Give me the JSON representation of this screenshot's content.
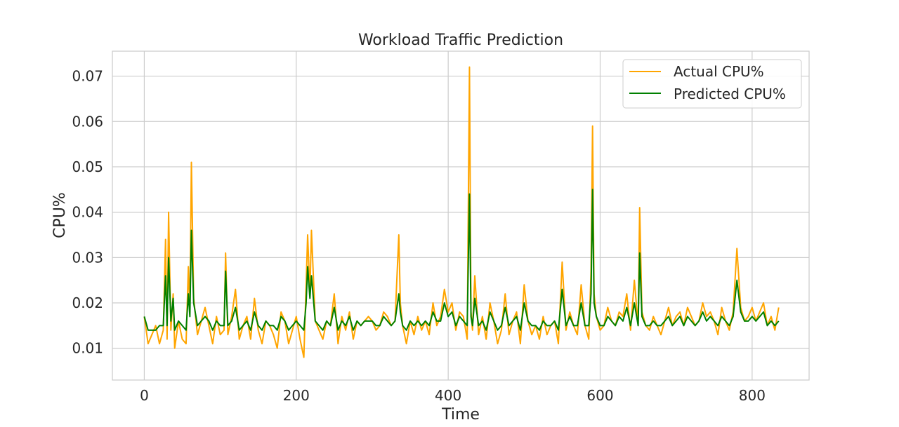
{
  "chart_data": {
    "type": "line",
    "title": "Workload Traffic Prediction",
    "xlabel": "Time",
    "ylabel": "CPU%",
    "xlim": [
      -42,
      875
    ],
    "ylim": [
      0.003,
      0.0755
    ],
    "xticks": [
      0,
      200,
      400,
      600,
      800
    ],
    "xtick_labels": [
      "0",
      "200",
      "400",
      "600",
      "800"
    ],
    "yticks": [
      0.01,
      0.02,
      0.03,
      0.04,
      0.05,
      0.06,
      0.07
    ],
    "ytick_labels": [
      "0.01",
      "0.02",
      "0.03",
      "0.04",
      "0.05",
      "0.06",
      "0.07"
    ],
    "grid": true,
    "legend_position": "top-right",
    "series": [
      {
        "name": "Actual CPU%",
        "color": "#FFA500",
        "x": [
          0,
          5,
          10,
          15,
          20,
          25,
          28,
          30,
          32,
          35,
          38,
          40,
          45,
          50,
          55,
          58,
          60,
          62,
          65,
          70,
          75,
          80,
          85,
          90,
          95,
          100,
          105,
          107,
          110,
          115,
          120,
          125,
          130,
          135,
          140,
          145,
          150,
          155,
          160,
          165,
          170,
          175,
          180,
          185,
          190,
          195,
          200,
          205,
          210,
          213,
          215,
          218,
          220,
          225,
          230,
          235,
          240,
          245,
          250,
          255,
          260,
          265,
          270,
          275,
          280,
          285,
          290,
          295,
          300,
          305,
          310,
          315,
          320,
          325,
          330,
          335,
          337,
          340,
          345,
          350,
          355,
          360,
          365,
          370,
          375,
          380,
          385,
          390,
          395,
          400,
          405,
          410,
          415,
          420,
          425,
          428,
          430,
          432,
          435,
          440,
          445,
          450,
          455,
          460,
          465,
          470,
          475,
          480,
          485,
          490,
          495,
          500,
          505,
          510,
          515,
          520,
          525,
          530,
          535,
          540,
          545,
          550,
          555,
          560,
          565,
          570,
          575,
          580,
          585,
          588,
          590,
          592,
          595,
          600,
          605,
          610,
          615,
          620,
          625,
          630,
          635,
          640,
          645,
          650,
          652,
          655,
          660,
          665,
          670,
          675,
          680,
          685,
          690,
          695,
          700,
          705,
          710,
          715,
          720,
          725,
          730,
          735,
          740,
          745,
          750,
          755,
          760,
          765,
          770,
          775,
          780,
          785,
          790,
          795,
          800,
          805,
          810,
          815,
          820,
          825,
          830,
          835
        ],
        "values": [
          0.017,
          0.011,
          0.013,
          0.015,
          0.011,
          0.014,
          0.034,
          0.012,
          0.04,
          0.014,
          0.022,
          0.01,
          0.016,
          0.012,
          0.011,
          0.028,
          0.018,
          0.051,
          0.021,
          0.013,
          0.016,
          0.019,
          0.015,
          0.011,
          0.017,
          0.013,
          0.014,
          0.031,
          0.013,
          0.017,
          0.023,
          0.012,
          0.015,
          0.017,
          0.012,
          0.021,
          0.014,
          0.011,
          0.016,
          0.015,
          0.013,
          0.01,
          0.018,
          0.016,
          0.011,
          0.014,
          0.017,
          0.012,
          0.008,
          0.024,
          0.035,
          0.022,
          0.036,
          0.016,
          0.014,
          0.012,
          0.016,
          0.015,
          0.022,
          0.011,
          0.017,
          0.014,
          0.018,
          0.012,
          0.016,
          0.015,
          0.016,
          0.017,
          0.016,
          0.014,
          0.015,
          0.018,
          0.017,
          0.015,
          0.016,
          0.035,
          0.02,
          0.015,
          0.011,
          0.016,
          0.013,
          0.017,
          0.014,
          0.016,
          0.013,
          0.02,
          0.015,
          0.017,
          0.023,
          0.018,
          0.02,
          0.014,
          0.018,
          0.017,
          0.012,
          0.072,
          0.018,
          0.014,
          0.026,
          0.013,
          0.017,
          0.012,
          0.02,
          0.016,
          0.011,
          0.014,
          0.022,
          0.013,
          0.016,
          0.018,
          0.011,
          0.024,
          0.016,
          0.013,
          0.015,
          0.012,
          0.017,
          0.013,
          0.015,
          0.016,
          0.011,
          0.029,
          0.014,
          0.018,
          0.015,
          0.013,
          0.024,
          0.015,
          0.012,
          0.027,
          0.059,
          0.022,
          0.017,
          0.014,
          0.015,
          0.019,
          0.016,
          0.015,
          0.018,
          0.017,
          0.022,
          0.014,
          0.025,
          0.015,
          0.041,
          0.018,
          0.015,
          0.014,
          0.017,
          0.015,
          0.013,
          0.016,
          0.019,
          0.015,
          0.017,
          0.018,
          0.015,
          0.019,
          0.017,
          0.015,
          0.016,
          0.02,
          0.017,
          0.018,
          0.016,
          0.013,
          0.019,
          0.016,
          0.014,
          0.018,
          0.032,
          0.019,
          0.016,
          0.017,
          0.019,
          0.016,
          0.018,
          0.02,
          0.015,
          0.017,
          0.014,
          0.019
        ]
      },
      {
        "name": "Predicted CPU%",
        "color": "#008000",
        "x": [
          0,
          5,
          10,
          15,
          20,
          25,
          28,
          30,
          32,
          35,
          38,
          40,
          45,
          50,
          55,
          58,
          60,
          62,
          65,
          70,
          75,
          80,
          85,
          90,
          95,
          100,
          105,
          107,
          110,
          115,
          120,
          125,
          130,
          135,
          140,
          145,
          150,
          155,
          160,
          165,
          170,
          175,
          180,
          185,
          190,
          195,
          200,
          205,
          210,
          213,
          215,
          218,
          220,
          225,
          230,
          235,
          240,
          245,
          250,
          255,
          260,
          265,
          270,
          275,
          280,
          285,
          290,
          295,
          300,
          305,
          310,
          315,
          320,
          325,
          330,
          335,
          337,
          340,
          345,
          350,
          355,
          360,
          365,
          370,
          375,
          380,
          385,
          390,
          395,
          400,
          405,
          410,
          415,
          420,
          425,
          428,
          430,
          432,
          435,
          440,
          445,
          450,
          455,
          460,
          465,
          470,
          475,
          480,
          485,
          490,
          495,
          500,
          505,
          510,
          515,
          520,
          525,
          530,
          535,
          540,
          545,
          550,
          555,
          560,
          565,
          570,
          575,
          580,
          585,
          588,
          590,
          592,
          595,
          600,
          605,
          610,
          615,
          620,
          625,
          630,
          635,
          640,
          645,
          650,
          652,
          655,
          660,
          665,
          670,
          675,
          680,
          685,
          690,
          695,
          700,
          705,
          710,
          715,
          720,
          725,
          730,
          735,
          740,
          745,
          750,
          755,
          760,
          765,
          770,
          775,
          780,
          785,
          790,
          795,
          800,
          805,
          810,
          815,
          820,
          825,
          830,
          835
        ],
        "values": [
          0.017,
          0.014,
          0.014,
          0.014,
          0.015,
          0.015,
          0.026,
          0.015,
          0.03,
          0.016,
          0.021,
          0.014,
          0.016,
          0.015,
          0.014,
          0.022,
          0.017,
          0.036,
          0.02,
          0.015,
          0.016,
          0.017,
          0.016,
          0.014,
          0.016,
          0.015,
          0.015,
          0.027,
          0.015,
          0.016,
          0.019,
          0.014,
          0.015,
          0.016,
          0.014,
          0.018,
          0.015,
          0.014,
          0.016,
          0.015,
          0.015,
          0.014,
          0.017,
          0.016,
          0.014,
          0.015,
          0.016,
          0.015,
          0.014,
          0.02,
          0.028,
          0.021,
          0.026,
          0.016,
          0.015,
          0.014,
          0.016,
          0.015,
          0.019,
          0.014,
          0.016,
          0.015,
          0.017,
          0.014,
          0.016,
          0.015,
          0.016,
          0.016,
          0.016,
          0.015,
          0.015,
          0.017,
          0.016,
          0.015,
          0.016,
          0.022,
          0.018,
          0.015,
          0.014,
          0.016,
          0.015,
          0.016,
          0.015,
          0.016,
          0.015,
          0.018,
          0.016,
          0.016,
          0.02,
          0.017,
          0.018,
          0.015,
          0.017,
          0.016,
          0.015,
          0.044,
          0.017,
          0.015,
          0.021,
          0.015,
          0.016,
          0.014,
          0.018,
          0.016,
          0.014,
          0.015,
          0.019,
          0.015,
          0.016,
          0.017,
          0.014,
          0.02,
          0.016,
          0.015,
          0.015,
          0.014,
          0.016,
          0.015,
          0.015,
          0.016,
          0.014,
          0.023,
          0.015,
          0.017,
          0.015,
          0.015,
          0.02,
          0.015,
          0.015,
          0.022,
          0.045,
          0.02,
          0.017,
          0.015,
          0.015,
          0.017,
          0.016,
          0.015,
          0.017,
          0.016,
          0.019,
          0.015,
          0.02,
          0.015,
          0.031,
          0.017,
          0.015,
          0.015,
          0.016,
          0.015,
          0.015,
          0.016,
          0.017,
          0.015,
          0.016,
          0.017,
          0.015,
          0.017,
          0.016,
          0.015,
          0.016,
          0.018,
          0.016,
          0.017,
          0.016,
          0.015,
          0.017,
          0.016,
          0.015,
          0.017,
          0.025,
          0.018,
          0.016,
          0.016,
          0.017,
          0.016,
          0.017,
          0.018,
          0.015,
          0.016,
          0.015,
          0.016
        ]
      }
    ]
  }
}
